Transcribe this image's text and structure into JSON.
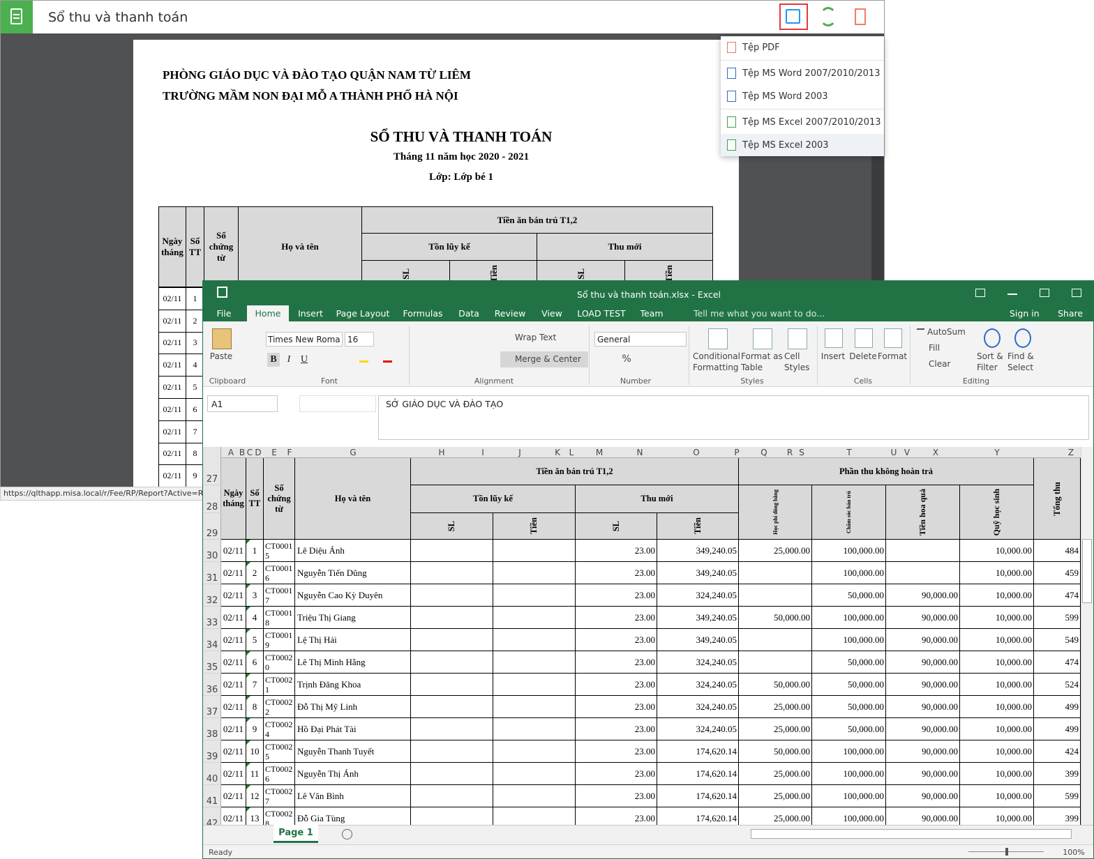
{
  "app": {
    "title": "Sổ thu và thanh toán",
    "url": "https://qlthapp.misa.local/r/Fee/RP/Report?Active=Re"
  },
  "export_menu": [
    "Tệp PDF",
    "Tệp MS Word 2007/2010/2013",
    "Tệp MS Word 2003",
    "Tệp MS Excel 2007/2010/2013",
    "Tệp MS Excel 2003"
  ],
  "report": {
    "org1": "PHÒNG GIÁO DỤC VÀ ĐÀO TẠO QUẬN NAM TỪ LIÊM",
    "org2": "TRƯỜNG MẦM NON ĐẠI MỖ A THÀNH PHỐ HÀ NỘI",
    "title": "SỔ THU VÀ THANH TOÁN",
    "period": "Tháng 11 năm học 2020 - 2021",
    "class": "Lớp: Lớp bé 1",
    "headers": {
      "date": "Ngày tháng",
      "stt": "Số TT",
      "doc": "Số chứng từ",
      "name": "Họ và tên",
      "group": "Tiền ăn bán trú T1,2",
      "sub1": "Tồn lũy kế",
      "sub2": "Thu mới",
      "sl": "SL",
      "tien": "Tiền"
    },
    "rows": [
      {
        "date": "02/11",
        "stt": "1"
      },
      {
        "date": "02/11",
        "stt": "2"
      },
      {
        "date": "02/11",
        "stt": "3"
      },
      {
        "date": "02/11",
        "stt": "4"
      },
      {
        "date": "02/11",
        "stt": "5"
      },
      {
        "date": "02/11",
        "stt": "6"
      },
      {
        "date": "02/11",
        "stt": "7"
      },
      {
        "date": "02/11",
        "stt": "8"
      },
      {
        "date": "02/11",
        "stt": "9"
      }
    ]
  },
  "excel": {
    "title": "Sổ thu và thanh toán.xlsx - Excel",
    "tabs": [
      "File",
      "Home",
      "Insert",
      "Page Layout",
      "Formulas",
      "Data",
      "Review",
      "View",
      "LOAD TEST",
      "Team"
    ],
    "tell": "Tell me what you want to do...",
    "signin": "Sign in",
    "share": "Share",
    "ribbon": {
      "paste": "Paste",
      "clipboard": "Clipboard",
      "font_name": "Times New Roma",
      "font_size": "16",
      "font_buttons": [
        "B",
        "I",
        "U"
      ],
      "font": "Font",
      "wrap": "Wrap Text",
      "merge": "Merge & Center",
      "alignment": "Alignment",
      "number_format": "General",
      "percent": "%",
      "number": "Number",
      "cond": "Conditional Formatting",
      "fmt_table": "Format as Table",
      "cell_styles": "Cell Styles",
      "styles": "Styles",
      "insert": "Insert",
      "delete": "Delete",
      "format": "Format",
      "cells": "Cells",
      "autosum": "AutoSum",
      "fill": "Fill",
      "clear": "Clear",
      "sort": "Sort & Filter",
      "find": "Find & Select",
      "editing": "Editing"
    },
    "name_box": "A1",
    "formula": "SỞ GIÁO DỤC VÀ ĐÀO TẠO",
    "columns": [
      "A",
      "B",
      "C",
      "D",
      "E",
      "F",
      "G",
      "H",
      "I",
      "J",
      "K",
      "L",
      "M",
      "N",
      "O",
      "P",
      "Q",
      "R",
      "S",
      "T",
      "U",
      "V",
      "X",
      "Y",
      "Z"
    ],
    "header_rows": [
      "27",
      "28",
      "29"
    ],
    "headers": {
      "date": "Ngày tháng",
      "stt": "Số TT",
      "doc": "Số chứng từ",
      "name": "Họ và tên",
      "group1": "Tiền ăn bán trú T1,2",
      "sub1": "Tồn lũy kế",
      "sub2": "Thu mới",
      "sl": "SL",
      "tien": "Tiền",
      "group2": "Phần thu không hoàn trả",
      "hpdb": "Học phí đóng bằng",
      "csbt": "Chăm sóc bán trú",
      "thq": "Tiền hoa quả",
      "qhs": "Quỹ học sinh",
      "total": "Tổng thu"
    },
    "rows": [
      {
        "row": "30",
        "date": "02/11",
        "stt": "1",
        "doc": "CT00015",
        "name": "Lê Diệu Ánh",
        "sl": "23.00",
        "tien": "349,240.05",
        "hpdb": "25,000.00",
        "csbt": "100,000.00",
        "qhs": "10,000.00",
        "tong": "484"
      },
      {
        "row": "31",
        "date": "02/11",
        "stt": "2",
        "doc": "CT00016",
        "name": "Nguyễn Tiến Dũng",
        "sl": "23.00",
        "tien": "349,240.05",
        "csbt": "100,000.00",
        "qhs": "10,000.00",
        "tong": "459"
      },
      {
        "row": "32",
        "date": "02/11",
        "stt": "3",
        "doc": "CT00017",
        "name": "Nguyễn Cao Kỳ Duyên",
        "sl": "23.00",
        "tien": "324,240.05",
        "csbt": "50,000.00",
        "thq": "90,000.00",
        "qhs": "10,000.00",
        "tong": "474"
      },
      {
        "row": "33",
        "date": "02/11",
        "stt": "4",
        "doc": "CT00018",
        "name": "Triệu Thị Giang",
        "sl": "23.00",
        "tien": "349,240.05",
        "hpdb": "50,000.00",
        "csbt": "100,000.00",
        "thq": "90,000.00",
        "qhs": "10,000.00",
        "tong": "599"
      },
      {
        "row": "34",
        "date": "02/11",
        "stt": "5",
        "doc": "CT00019",
        "name": "Lệ Thị Hải",
        "sl": "23.00",
        "tien": "349,240.05",
        "csbt": "100,000.00",
        "thq": "90,000.00",
        "qhs": "10,000.00",
        "tong": "549"
      },
      {
        "row": "35",
        "date": "02/11",
        "stt": "6",
        "doc": "CT00020",
        "name": "Lê Thị Minh Hằng",
        "sl": "23.00",
        "tien": "324,240.05",
        "csbt": "50,000.00",
        "thq": "90,000.00",
        "qhs": "10,000.00",
        "tong": "474"
      },
      {
        "row": "36",
        "date": "02/11",
        "stt": "7",
        "doc": "CT00021",
        "name": "Trịnh Đăng Khoa",
        "sl": "23.00",
        "tien": "324,240.05",
        "hpdb": "50,000.00",
        "csbt": "50,000.00",
        "thq": "90,000.00",
        "qhs": "10,000.00",
        "tong": "524"
      },
      {
        "row": "37",
        "date": "02/11",
        "stt": "8",
        "doc": "CT00022",
        "name": "Đỗ Thị Mỹ Linh",
        "sl": "23.00",
        "tien": "324,240.05",
        "hpdb": "25,000.00",
        "csbt": "50,000.00",
        "thq": "90,000.00",
        "qhs": "10,000.00",
        "tong": "499"
      },
      {
        "row": "38",
        "date": "02/11",
        "stt": "9",
        "doc": "CT00024",
        "name": "Hồ Đại Phát Tài",
        "sl": "23.00",
        "tien": "324,240.05",
        "hpdb": "25,000.00",
        "csbt": "50,000.00",
        "thq": "90,000.00",
        "qhs": "10,000.00",
        "tong": "499"
      },
      {
        "row": "39",
        "date": "02/11",
        "stt": "10",
        "doc": "CT00025",
        "name": "Nguyễn Thanh Tuyết",
        "sl": "23.00",
        "tien": "174,620.14",
        "hpdb": "50,000.00",
        "csbt": "100,000.00",
        "thq": "90,000.00",
        "qhs": "10,000.00",
        "tong": "424"
      },
      {
        "row": "40",
        "date": "02/11",
        "stt": "11",
        "doc": "CT00026",
        "name": "Nguyễn Thị Ánh",
        "sl": "23.00",
        "tien": "174,620.14",
        "hpdb": "25,000.00",
        "csbt": "100,000.00",
        "thq": "90,000.00",
        "qhs": "10,000.00",
        "tong": "399"
      },
      {
        "row": "41",
        "date": "02/11",
        "stt": "12",
        "doc": "CT00027",
        "name": "Lê Văn Bình",
        "sl": "23.00",
        "tien": "174,620.14",
        "hpdb": "25,000.00",
        "csbt": "100,000.00",
        "thq": "90,000.00",
        "qhs": "10,000.00",
        "tong": "599"
      },
      {
        "row": "42",
        "date": "02/11",
        "stt": "13",
        "doc": "CT00028",
        "name": "Đỗ Gia  Tùng",
        "sl": "23.00",
        "tien": "174,620.14",
        "hpdb": "25,000.00",
        "csbt": "100,000.00",
        "thq": "90,000.00",
        "qhs": "10,000.00",
        "tong": "399"
      }
    ],
    "sheet": "Page 1",
    "status": "Ready",
    "zoom": "100%"
  }
}
